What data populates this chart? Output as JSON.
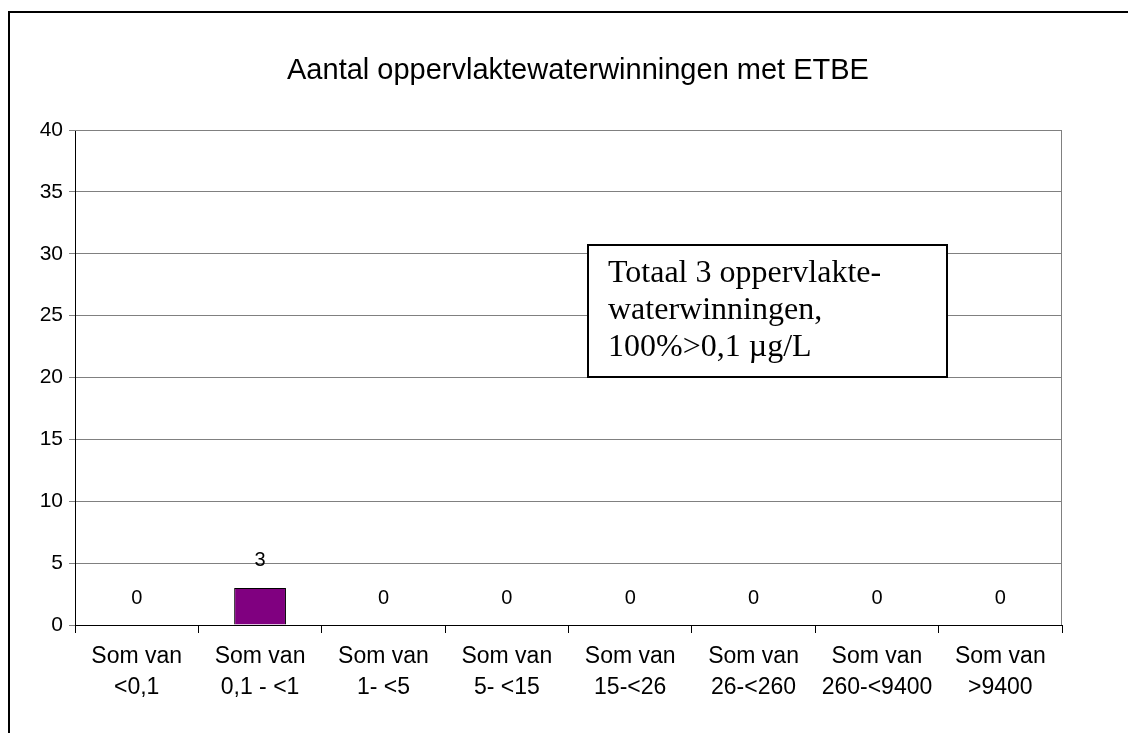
{
  "chart_data": {
    "type": "bar",
    "title": "Aantal oppervlaktewaterwinningen met ETBE",
    "categories": [
      "Som van <0,1",
      "Som van 0,1 - <1",
      "Som van 1- <5",
      "Som van 5- <15",
      "Som van 15-<26",
      "Som van 26-<260",
      "Som van 260-<9400",
      "Som van >9400"
    ],
    "values": [
      0,
      3,
      0,
      0,
      0,
      0,
      0,
      0
    ],
    "color": "#800080",
    "ylim": [
      0,
      40
    ],
    "yticks": [
      0,
      5,
      10,
      15,
      20,
      25,
      30,
      35,
      40
    ],
    "grid": "y",
    "data_labels": true,
    "annotations": [
      "Totaal 3 oppervlakte-waterwinningen, 100%>0,1 µg/L"
    ]
  }
}
